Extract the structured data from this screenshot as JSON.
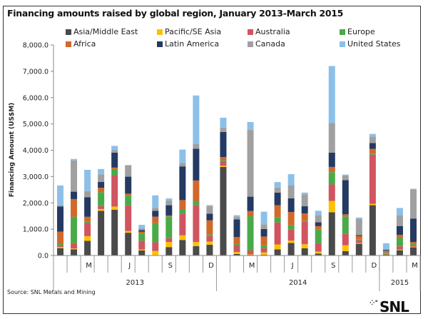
{
  "chart_data": {
    "type": "bar",
    "stacked": true,
    "title": "Financing amounts raised by global region, January 2013-March 2015",
    "ylabel": "Financing Amount (US$M)",
    "xlabel": "",
    "ylim": [
      0,
      8000
    ],
    "yticks": [
      "0.0",
      "1,000.0",
      "2,000.0",
      "3,000.0",
      "4,000.0",
      "5,000.0",
      "6,000.0",
      "7,000.0",
      "8,000.0"
    ],
    "legend_position": "top",
    "categories": [
      "Jan 2013",
      "Feb 2013",
      "Mar 2013",
      "Apr 2013",
      "May 2013",
      "Jun 2013",
      "Jul 2013",
      "Aug 2013",
      "Sep 2013",
      "Oct 2013",
      "Nov 2013",
      "Dec 2013",
      "Jan 2014",
      "Feb 2014",
      "Mar 2014",
      "Apr 2014",
      "May 2014",
      "Jun 2014",
      "Jul 2014",
      "Aug 2014",
      "Sep 2014",
      "Oct 2014",
      "Nov 2014",
      "Dec 2014",
      "Jan 2015",
      "Feb 2015",
      "Mar 2015"
    ],
    "month_labels": [
      "",
      "",
      "M",
      "",
      "",
      "J",
      "",
      "",
      "S",
      "",
      "",
      "D",
      "",
      "",
      "M",
      "",
      "",
      "J",
      "",
      "",
      "S",
      "",
      "",
      "D",
      "",
      "",
      "M"
    ],
    "years": [
      {
        "label": "2013",
        "count": 12
      },
      {
        "label": "2014",
        "count": 12
      },
      {
        "label": "2015",
        "count": 3
      }
    ],
    "series": [
      {
        "name": "Asia/Middle East",
        "color": "#4a4a4a",
        "values": [
          280,
          230,
          555,
          1700,
          1740,
          865,
          190,
          0,
          320,
          590,
          355,
          410,
          3365,
          55,
          25,
          25,
          230,
          475,
          275,
          75,
          1645,
          165,
          445,
          1910,
          45,
          200,
          310
        ]
      },
      {
        "name": "Pacific/SE Asia",
        "color": "#ffc000",
        "values": [
          40,
          35,
          180,
          65,
          120,
          65,
          35,
          170,
          190,
          175,
          155,
          120,
          45,
          75,
          20,
          90,
          190,
          90,
          155,
          75,
          430,
          225,
          30,
          55,
          25,
          25,
          25
        ]
      },
      {
        "name": "Australia",
        "color": "#d05560",
        "values": [
          45,
          200,
          500,
          110,
          1190,
          965,
          335,
          330,
          145,
          810,
          1410,
          210,
          175,
          265,
          145,
          155,
          835,
          430,
          855,
          320,
          625,
          430,
          100,
          1865,
          45,
          120,
          55
        ]
      },
      {
        "name": "Europe",
        "color": "#4aaa48",
        "values": [
          70,
          1010,
          45,
          530,
          235,
          380,
          275,
          730,
          830,
          175,
          155,
          65,
          35,
          65,
          1300,
          120,
          190,
          155,
          35,
          525,
          465,
          665,
          45,
          25,
          30,
          320,
          45
        ]
      },
      {
        "name": "Africa",
        "color": "#d2692a",
        "values": [
          470,
          670,
          190,
          170,
          55,
          75,
          65,
          245,
          35,
          355,
          775,
          530,
          120,
          245,
          200,
          330,
          465,
          500,
          275,
          120,
          200,
          80,
          120,
          200,
          30,
          120,
          80
        ]
      },
      {
        "name": "Latin America",
        "color": "#243a63",
        "values": [
          960,
          280,
          740,
          220,
          570,
          645,
          65,
          225,
          390,
          1280,
          1210,
          255,
          955,
          670,
          545,
          290,
          480,
          520,
          275,
          145,
          545,
          1300,
          35,
          220,
          35,
          335,
          890
        ]
      },
      {
        "name": "Canada",
        "color": "#a0a0a0",
        "values": [
          45,
          1190,
          235,
          290,
          90,
          420,
          65,
          110,
          180,
          130,
          180,
          290,
          165,
          100,
          2535,
          175,
          190,
          510,
          455,
          275,
          1130,
          180,
          620,
          245,
          35,
          410,
          1110
        ]
      },
      {
        "name": "United States",
        "color": "#8cc0e8",
        "values": [
          750,
          55,
          810,
          200,
          165,
          25,
          135,
          475,
          80,
          510,
          1840,
          35,
          375,
          55,
          300,
          480,
          210,
          410,
          65,
          165,
          2160,
          30,
          45,
          100,
          220,
          275,
          20
        ]
      }
    ]
  },
  "source": "Source: SNL Metals and Mining",
  "logo": "SNL"
}
